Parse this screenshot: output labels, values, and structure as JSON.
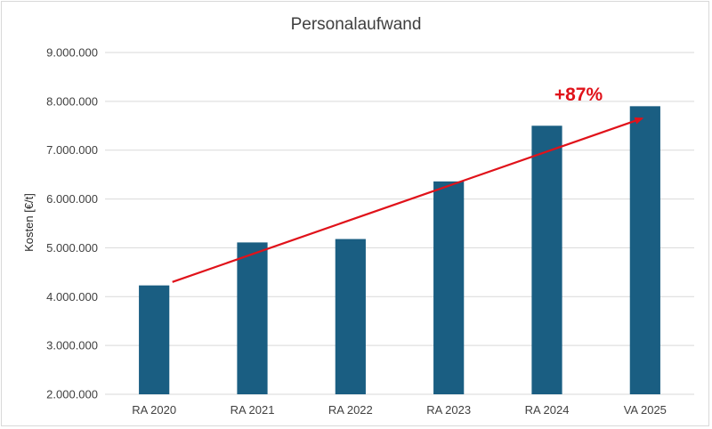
{
  "chart_data": {
    "type": "bar",
    "title": "Personalaufwand",
    "xlabel": "",
    "ylabel": "Kosten [€/t]",
    "categories": [
      "RA 2020",
      "RA 2021",
      "RA 2022",
      "RA 2023",
      "RA 2024",
      "VA 2025"
    ],
    "values": [
      4230000,
      5110000,
      5180000,
      6360000,
      7500000,
      7900000
    ],
    "ylim": [
      2000000,
      9000000
    ],
    "yticks": [
      2000000,
      3000000,
      4000000,
      5000000,
      6000000,
      7000000,
      8000000,
      9000000
    ],
    "ytick_labels": [
      "2.000.000",
      "3.000.000",
      "4.000.000",
      "5.000.000",
      "6.000.000",
      "7.000.000",
      "8.000.000",
      "9.000.000"
    ],
    "grid": true,
    "legend": "none",
    "bar_color": "#1a5e82",
    "trend_arrow": {
      "color": "#e0121a",
      "from": {
        "category": "RA 2020",
        "value": 4300000
      },
      "to": {
        "category": "VA 2025",
        "value": 7650000
      }
    },
    "annotation": "+87%"
  }
}
